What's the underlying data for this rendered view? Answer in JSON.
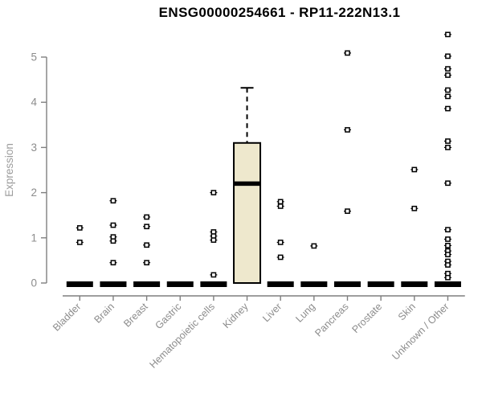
{
  "chart_data": {
    "type": "boxplot",
    "title": "ENSG00000254661 - RP11-222N13.1",
    "xlabel": "",
    "ylabel": "Expression",
    "ylim": [
      0,
      5.6
    ],
    "yticks": [
      0,
      1,
      2,
      3,
      4,
      5
    ],
    "grid": false,
    "legend": "none",
    "categories": [
      "Bladder",
      "Brain",
      "Breast",
      "Gastric",
      "Hematopoietic cells",
      "Kidney",
      "Liver",
      "Lung",
      "Pancreas",
      "Prostate",
      "Skin",
      "Unknown / Other"
    ],
    "boxes": [
      {
        "category": "Bladder",
        "q1": 0,
        "median": 0,
        "q3": 0,
        "whisker_low": 0,
        "whisker_high": 0,
        "outliers": [
          1.22,
          0.9
        ]
      },
      {
        "category": "Brain",
        "q1": 0,
        "median": 0,
        "q3": 0,
        "whisker_low": 0,
        "whisker_high": 0,
        "outliers": [
          1.82,
          1.28,
          1.02,
          0.93,
          0.45
        ]
      },
      {
        "category": "Breast",
        "q1": 0,
        "median": 0,
        "q3": 0,
        "whisker_low": 0,
        "whisker_high": 0,
        "outliers": [
          1.46,
          1.25,
          0.84,
          0.45
        ]
      },
      {
        "category": "Gastric",
        "q1": 0,
        "median": 0,
        "q3": 0,
        "whisker_low": 0,
        "whisker_high": 0,
        "outliers": []
      },
      {
        "category": "Hematopoietic cells",
        "q1": 0,
        "median": 0,
        "q3": 0,
        "whisker_low": 0,
        "whisker_high": 0,
        "outliers": [
          2.0,
          1.13,
          1.04,
          0.95,
          0.18
        ]
      },
      {
        "category": "Kidney",
        "q1": 0,
        "median": 2.2,
        "q3": 3.1,
        "whisker_low": 0,
        "whisker_high": 4.32,
        "outliers": []
      },
      {
        "category": "Liver",
        "q1": 0,
        "median": 0,
        "q3": 0,
        "whisker_low": 0,
        "whisker_high": 0,
        "outliers": [
          1.8,
          1.7,
          0.9,
          0.57
        ]
      },
      {
        "category": "Lung",
        "q1": 0,
        "median": 0,
        "q3": 0,
        "whisker_low": 0,
        "whisker_high": 0,
        "outliers": [
          0.82
        ]
      },
      {
        "category": "Pancreas",
        "q1": 0,
        "median": 0,
        "q3": 0,
        "whisker_low": 0,
        "whisker_high": 0,
        "outliers": [
          5.09,
          3.39,
          1.59
        ]
      },
      {
        "category": "Prostate",
        "q1": 0,
        "median": 0,
        "q3": 0,
        "whisker_low": 0,
        "whisker_high": 0,
        "outliers": []
      },
      {
        "category": "Skin",
        "q1": 0,
        "median": 0,
        "q3": 0,
        "whisker_low": 0,
        "whisker_high": 0,
        "outliers": [
          2.51,
          1.65
        ]
      },
      {
        "category": "Unknown / Other",
        "q1": 0,
        "median": 0,
        "q3": 0,
        "whisker_low": 0,
        "whisker_high": 0,
        "outliers": [
          5.5,
          5.02,
          4.74,
          4.6,
          4.27,
          4.13,
          3.86,
          3.14,
          3.0,
          2.21,
          1.18,
          0.97,
          0.83,
          0.71,
          0.63,
          0.48,
          0.4,
          0.21,
          0.12
        ]
      }
    ],
    "colors": {
      "box_fill": "#EEE8CD",
      "box_border": "#000000",
      "median": "#000000",
      "zero_bar": "#000000",
      "outlier": "#000000",
      "axis_line": "#7f7f7f",
      "tick_label": "#8c8c8c",
      "axis_title": "#9c9c9c",
      "title": "#000000",
      "background": "#ffffff"
    }
  }
}
